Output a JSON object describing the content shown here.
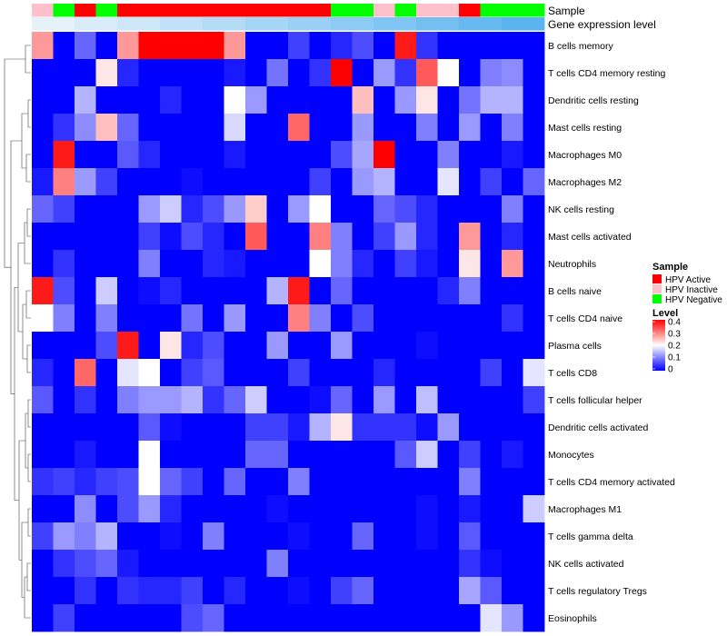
{
  "chart_data": {
    "type": "heatmap",
    "annotation_tracks": [
      {
        "name": "Sample",
        "values": [
          "HPV Inactive",
          "HPV Negative",
          "HPV Active",
          "HPV Negative",
          "HPV Active",
          "HPV Active",
          "HPV Active",
          "HPV Active",
          "HPV Active",
          "HPV Active",
          "HPV Active",
          "HPV Active",
          "HPV Active",
          "HPV Active",
          "HPV Negative",
          "HPV Negative",
          "HPV Inactive",
          "HPV Negative",
          "HPV Inactive",
          "HPV Inactive",
          "HPV Active",
          "HPV Negative",
          "HPV Negative",
          "HPV Negative"
        ]
      },
      {
        "name": "Gene expression level",
        "values": [
          0.1,
          0.1,
          0.11,
          0.11,
          0.12,
          0.12,
          0.13,
          0.13,
          0.14,
          0.14,
          0.15,
          0.15,
          0.16,
          0.16,
          0.17,
          0.17,
          0.18,
          0.18,
          0.19,
          0.19,
          0.2,
          0.2,
          0.21,
          0.21
        ]
      }
    ],
    "rows": [
      "B cells memory",
      "T cells CD4 memory resting",
      "Dendritic cells resting",
      "Mast cells resting",
      "Macrophages M0",
      "Macrophages M2",
      "NK cells resting",
      "Mast cells activated",
      "Neutrophils",
      "B cells naive",
      "T cells CD4 naive",
      "Plasma cells",
      "T cells CD8",
      "T cells follicular helper",
      "Dendritic cells activated",
      "Monocytes",
      "T cells CD4 memory activated",
      "Macrophages M1",
      "T cells gamma delta",
      "NK cells activated",
      "T cells regulatory  Tregs",
      "Eosinophils"
    ],
    "values": [
      [
        0.28,
        0.0,
        0.08,
        0.0,
        0.28,
        0.4,
        0.4,
        0.4,
        0.4,
        0.28,
        0.0,
        0.0,
        0.05,
        0.0,
        0.03,
        0.06,
        0.0,
        0.38,
        0.04,
        0.0,
        0.0,
        0.0,
        0.0,
        0.0
      ],
      [
        0.0,
        0.0,
        0.0,
        0.22,
        0.03,
        0.0,
        0.0,
        0.0,
        0.0,
        0.02,
        0.0,
        0.09,
        0.0,
        0.04,
        0.4,
        0.0,
        0.12,
        0.04,
        0.33,
        0.2,
        0.0,
        0.1,
        0.11,
        0.0
      ],
      [
        0.0,
        0.0,
        0.14,
        0.0,
        0.0,
        0.0,
        0.03,
        0.0,
        0.0,
        0.2,
        0.12,
        0.0,
        0.0,
        0.0,
        0.0,
        0.25,
        0.0,
        0.12,
        0.22,
        0.0,
        0.09,
        0.14,
        0.14,
        0.0
      ],
      [
        0.0,
        0.04,
        0.11,
        0.25,
        0.08,
        0.0,
        0.0,
        0.0,
        0.0,
        0.17,
        0.0,
        0.0,
        0.32,
        0.0,
        0.0,
        0.12,
        0.0,
        0.0,
        0.1,
        0.0,
        0.12,
        0.0,
        0.1,
        0.0
      ],
      [
        0.0,
        0.38,
        0.0,
        0.0,
        0.07,
        0.03,
        0.0,
        0.0,
        0.0,
        0.02,
        0.0,
        0.0,
        0.0,
        0.0,
        0.06,
        0.13,
        0.4,
        0.0,
        0.0,
        0.1,
        0.0,
        0.0,
        0.02,
        0.0
      ],
      [
        0.02,
        0.3,
        0.12,
        0.05,
        0.0,
        0.0,
        0.0,
        0.01,
        0.0,
        0.0,
        0.0,
        0.0,
        0.0,
        0.05,
        0.0,
        0.12,
        0.14,
        0.0,
        0.0,
        0.18,
        0.0,
        0.05,
        0.0,
        0.08
      ],
      [
        0.08,
        0.05,
        0.0,
        0.0,
        0.0,
        0.12,
        0.16,
        0.03,
        0.06,
        0.12,
        0.24,
        0.0,
        0.12,
        0.2,
        0.0,
        0.0,
        0.08,
        0.06,
        0.03,
        0.0,
        0.0,
        0.0,
        0.1,
        0.0
      ],
      [
        0.0,
        0.0,
        0.0,
        0.0,
        0.0,
        0.05,
        0.01,
        0.06,
        0.03,
        0.0,
        0.33,
        0.0,
        0.0,
        0.3,
        0.1,
        0.0,
        0.05,
        0.12,
        0.03,
        0.0,
        0.28,
        0.0,
        0.03,
        0.0
      ],
      [
        0.0,
        0.04,
        0.0,
        0.0,
        0.0,
        0.1,
        0.0,
        0.0,
        0.03,
        0.02,
        0.0,
        0.0,
        0.0,
        0.2,
        0.1,
        0.03,
        0.0,
        0.05,
        0.02,
        0.0,
        0.22,
        0.0,
        0.28,
        0.0
      ],
      [
        0.38,
        0.06,
        0.0,
        0.16,
        0.0,
        0.01,
        0.03,
        0.0,
        0.0,
        0.0,
        0.0,
        0.14,
        0.38,
        0.0,
        0.08,
        0.0,
        0.0,
        0.0,
        0.0,
        0.03,
        0.1,
        0.0,
        0.0,
        0.0
      ],
      [
        0.2,
        0.1,
        0.0,
        0.1,
        0.0,
        0.0,
        0.0,
        0.09,
        0.0,
        0.12,
        0.0,
        0.0,
        0.3,
        0.1,
        0.0,
        0.06,
        0.0,
        0.0,
        0.0,
        0.0,
        0.0,
        0.0,
        0.04,
        0.0
      ],
      [
        0.0,
        0.0,
        0.0,
        0.06,
        0.38,
        0.0,
        0.22,
        0.03,
        0.06,
        0.0,
        0.0,
        0.12,
        0.0,
        0.0,
        0.12,
        0.0,
        0.0,
        0.0,
        0.01,
        0.0,
        0.0,
        0.0,
        0.0,
        0.0
      ],
      [
        0.03,
        0.0,
        0.32,
        0.0,
        0.18,
        0.2,
        0.0,
        0.05,
        0.07,
        0.0,
        0.0,
        0.0,
        0.05,
        0.0,
        0.0,
        0.0,
        0.03,
        0.0,
        0.0,
        0.0,
        0.0,
        0.05,
        0.0,
        0.18
      ],
      [
        0.07,
        0.0,
        0.04,
        0.0,
        0.1,
        0.12,
        0.12,
        0.14,
        0.04,
        0.08,
        0.16,
        0.0,
        0.0,
        0.01,
        0.08,
        0.0,
        0.12,
        0.0,
        0.15,
        0.0,
        0.0,
        0.0,
        0.0,
        0.05
      ],
      [
        0.0,
        0.0,
        0.0,
        0.0,
        0.0,
        0.07,
        0.01,
        0.0,
        0.0,
        0.0,
        0.05,
        0.05,
        0.02,
        0.14,
        0.22,
        0.04,
        0.04,
        0.04,
        0.01,
        0.12,
        0.0,
        0.0,
        0.0,
        0.0
      ],
      [
        0.0,
        0.0,
        0.02,
        0.0,
        0.0,
        0.2,
        0.0,
        0.0,
        0.0,
        0.0,
        0.08,
        0.08,
        0.0,
        0.0,
        0.0,
        0.0,
        0.0,
        0.07,
        0.16,
        0.0,
        0.05,
        0.0,
        0.02,
        0.0
      ],
      [
        0.04,
        0.05,
        0.03,
        0.05,
        0.06,
        0.2,
        0.08,
        0.05,
        0.0,
        0.08,
        0.0,
        0.0,
        0.1,
        0.0,
        0.0,
        0.0,
        0.0,
        0.0,
        0.0,
        0.0,
        0.1,
        0.0,
        0.0,
        0.0
      ],
      [
        0.0,
        0.0,
        0.11,
        0.0,
        0.06,
        0.12,
        0.03,
        0.0,
        0.0,
        0.0,
        0.0,
        0.01,
        0.0,
        0.0,
        0.0,
        0.0,
        0.0,
        0.0,
        0.01,
        0.0,
        0.02,
        0.0,
        0.0,
        0.16
      ],
      [
        0.05,
        0.12,
        0.1,
        0.14,
        0.0,
        0.0,
        0.01,
        0.0,
        0.1,
        0.0,
        0.0,
        0.0,
        0.01,
        0.0,
        0.0,
        0.08,
        0.0,
        0.0,
        0.01,
        0.0,
        0.07,
        0.0,
        0.0,
        0.0
      ],
      [
        0.0,
        0.04,
        0.06,
        0.08,
        0.02,
        0.0,
        0.0,
        0.0,
        0.0,
        0.0,
        0.0,
        0.1,
        0.0,
        0.0,
        0.0,
        0.0,
        0.0,
        0.0,
        0.0,
        0.0,
        0.04,
        0.01,
        0.0,
        0.0
      ],
      [
        0.0,
        0.0,
        0.04,
        0.0,
        0.04,
        0.03,
        0.03,
        0.05,
        0.0,
        0.03,
        0.0,
        0.0,
        0.01,
        0.0,
        0.05,
        0.08,
        0.0,
        0.0,
        0.0,
        0.0,
        0.13,
        0.07,
        0.0,
        0.0
      ],
      [
        0.0,
        0.05,
        0.0,
        0.0,
        0.0,
        0.0,
        0.0,
        0.06,
        0.08,
        0.0,
        0.0,
        0.0,
        0.0,
        0.0,
        0.0,
        0.0,
        0.0,
        0.0,
        0.0,
        0.0,
        0.0,
        0.18,
        0.12,
        0.0
      ]
    ],
    "legend": {
      "sample_title": "Sample",
      "sample_items": [
        {
          "label": "HPV Active",
          "color": "#ff0000"
        },
        {
          "label": "HPV Inactive",
          "color": "#ffc0cb"
        },
        {
          "label": "HPV Negative",
          "color": "#00ff00"
        }
      ],
      "level_title": "Level",
      "level_ticks": [
        "0.4",
        "0.3",
        "0.2",
        "0.1",
        "0"
      ],
      "level_range": [
        0,
        0.4
      ],
      "placement": "right"
    },
    "colors": {
      "low": "#0000ff",
      "mid": "#ffffff",
      "high": "#ff0000",
      "gene_low": "#e6f2fa",
      "gene_high": "#5ab4f0"
    },
    "dendrogram": "rows",
    "column_labels": "none"
  }
}
